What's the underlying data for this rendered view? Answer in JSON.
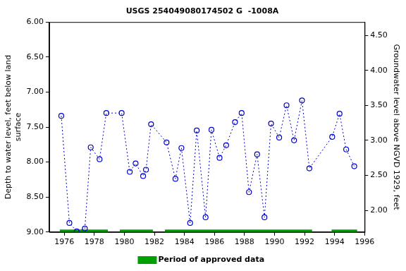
{
  "chart_data": {
    "type": "line",
    "title": "USGS 254049080174502 G  -1008A",
    "y_label": "Depth to water level, feet below land surface",
    "y2_label": "Groundwater level above NGVD 1929, feet",
    "x": [
      1975.8,
      1976.34,
      1976.83,
      1977.37,
      1977.76,
      1978.35,
      1978.8,
      1979.82,
      1980.36,
      1980.75,
      1981.25,
      1981.44,
      1981.78,
      1982.81,
      1983.4,
      1983.8,
      1984.38,
      1984.82,
      1985.41,
      1985.8,
      1986.34,
      1986.78,
      1987.37,
      1987.81,
      1988.3,
      1988.84,
      1989.33,
      1989.77,
      1990.31,
      1990.8,
      1991.3,
      1991.83,
      1992.32,
      1993.84,
      1994.33,
      1994.77,
      1995.31
    ],
    "series": [
      {
        "color": "#0000cc",
        "marker": "circle",
        "line_style": "dotted",
        "values": [
          7.34,
          8.87,
          8.99,
          8.95,
          7.79,
          7.96,
          7.3,
          7.3,
          8.14,
          8.02,
          8.2,
          8.11,
          7.46,
          7.72,
          8.24,
          7.8,
          8.87,
          7.55,
          8.79,
          7.54,
          7.94,
          7.76,
          7.43,
          7.3,
          8.43,
          7.89,
          8.79,
          7.45,
          7.65,
          7.19,
          7.69,
          7.12,
          8.09,
          7.64,
          7.31,
          7.82,
          8.06
        ]
      }
    ],
    "approved_periods": {
      "name": "Period of approved data",
      "color": "#00a000",
      "ranges": [
        [
          1975.7,
          1978.9
        ],
        [
          1979.7,
          1981.9
        ],
        [
          1982.7,
          1992.5
        ],
        [
          1993.8,
          1995.5
        ]
      ]
    },
    "xlim": [
      1975,
      1996
    ],
    "xticks": [
      1976,
      1978,
      1980,
      1982,
      1984,
      1986,
      1988,
      1990,
      1992,
      1994,
      1996
    ],
    "ylim": [
      6,
      9
    ],
    "yticks": [
      {
        "value": 6,
        "label": "6.00"
      },
      {
        "value": 6.5,
        "label": "6.50"
      },
      {
        "value": 7,
        "label": "7.00"
      },
      {
        "value": 7.5,
        "label": "7.50"
      },
      {
        "value": 8,
        "label": "8.00"
      },
      {
        "value": 8.5,
        "label": "8.50"
      },
      {
        "value": 9,
        "label": "9.00"
      }
    ],
    "y2lim": [
      1.69,
      4.69
    ],
    "y2ticks": [
      {
        "value": 2,
        "label": "2.00"
      },
      {
        "value": 2.5,
        "label": "2.50"
      },
      {
        "value": 3,
        "label": "3.00"
      },
      {
        "value": 3.5,
        "label": "3.50"
      },
      {
        "value": 4,
        "label": "4.00"
      },
      {
        "value": 4.5,
        "label": "4.50"
      }
    ],
    "grid": false,
    "legend": "bottom"
  }
}
